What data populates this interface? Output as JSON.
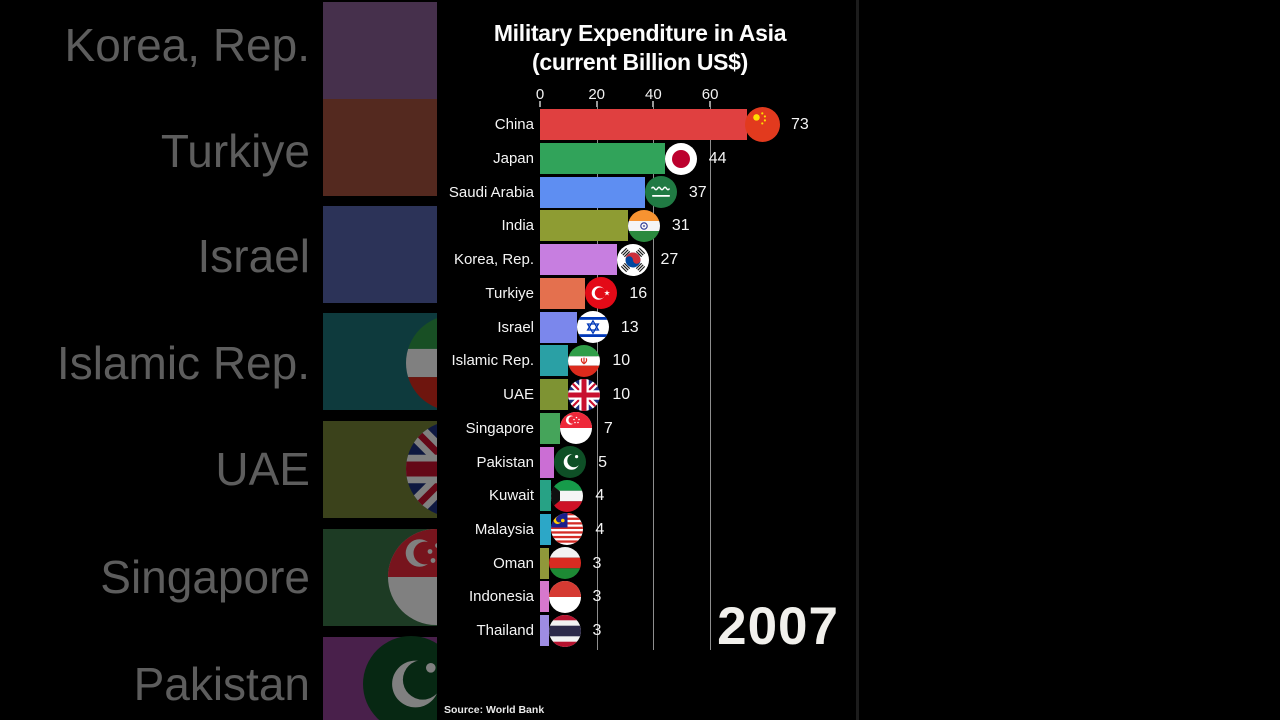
{
  "title": {
    "line1": "Military Expenditure in Asia",
    "line2": "(current Billion US$)"
  },
  "chart_data": {
    "type": "bar",
    "orientation": "horizontal",
    "title": "Military Expenditure in Asia (current Billion US$)",
    "year_label": "2007",
    "source": "Source: World Bank",
    "categories": [
      "China",
      "Japan",
      "Saudi Arabia",
      "India",
      "Korea, Rep.",
      "Turkiye",
      "Israel",
      "Islamic Rep.",
      "UAE",
      "Singapore",
      "Pakistan",
      "Kuwait",
      "Malaysia",
      "Oman",
      "Indonesia",
      "Thailand"
    ],
    "values": [
      73,
      44,
      37,
      31,
      27,
      16,
      13,
      10,
      10,
      7,
      5,
      4,
      4,
      3,
      3,
      3
    ],
    "colors": [
      "#e04040",
      "#31a35a",
      "#5e8ef2",
      "#8e9c33",
      "#c77ee0",
      "#e4704e",
      "#7b87ec",
      "#2aa0a5",
      "#7e9333",
      "#45a45a",
      "#cb6ed4",
      "#27a285",
      "#2ca7c7",
      "#90983a",
      "#d678cc",
      "#9e8ce2"
    ],
    "flags": [
      "china",
      "japan",
      "saudi-arabia",
      "india",
      "south-korea",
      "turkiye",
      "israel",
      "iran",
      "uk",
      "singapore",
      "pakistan",
      "kuwait",
      "malaysia",
      "oman",
      "indonesia",
      "thailand"
    ],
    "axis_ticks": [
      0,
      20,
      40,
      60
    ],
    "xlim": [
      0,
      75
    ],
    "grid": true,
    "legend": false,
    "text_color": "#f5f5f5",
    "background_color": "#000000"
  },
  "background": {
    "left_rows": [
      {
        "label": "Korea, Rep.",
        "color": "#46304c",
        "flag": null
      },
      {
        "label": "Turkiye",
        "color": "#54291f",
        "flag": null
      },
      {
        "label": "Israel",
        "color": "#2c3358",
        "flag": null
      },
      {
        "label": "Islamic Rep.",
        "color": "#0e3a3d",
        "flag": "iran"
      },
      {
        "label": "UAE",
        "color": "#3b421b",
        "flag": "uk"
      },
      {
        "label": "Singapore",
        "color": "#1d3b24",
        "flag": "singapore"
      },
      {
        "label": "Pakistan",
        "color": "#49204b",
        "flag": "pakistan"
      }
    ]
  }
}
